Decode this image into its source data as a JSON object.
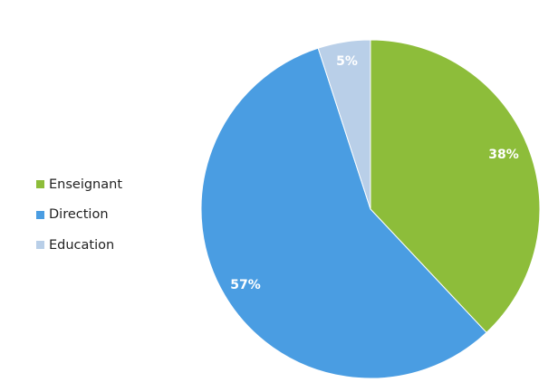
{
  "chart_data": {
    "type": "pie",
    "title": "",
    "categories": [
      "Enseignant",
      "Direction",
      "Education"
    ],
    "values": [
      38,
      57,
      5
    ],
    "data_labels": [
      "38%",
      "57%",
      "5%"
    ],
    "colors": [
      "#8dbd3a",
      "#4a9de2",
      "#b9cfe8"
    ],
    "start_angle_deg": 0,
    "direction": "clockwise",
    "legend_position": "left"
  }
}
